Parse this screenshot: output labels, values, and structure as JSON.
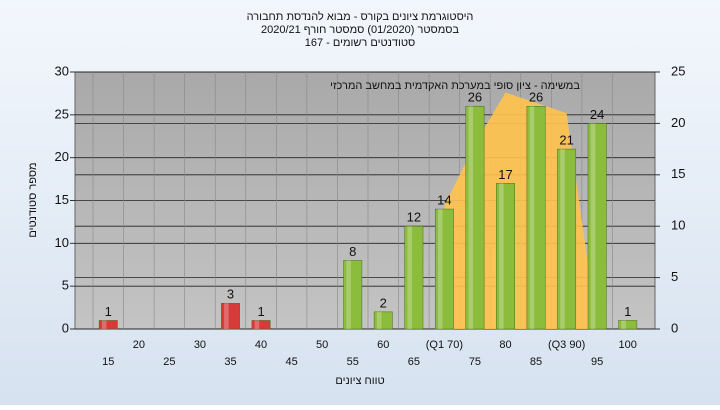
{
  "chart_data": {
    "type": "bar",
    "title": [
      "היסטוגרמת ציונים בקורס - מבוא להנדסת תחבורה",
      "בסמסטר (01/2020) סמסטר חורף 2020/21",
      "סטודנטים רשומים - 167"
    ],
    "annotation": "במשימה - ציון סופי במערכת האקדמית במחשב המרכזי",
    "y_label": "מספר סטודנטים",
    "x_label": "טווח ציונים",
    "categories": [
      "15",
      "20",
      "25",
      "30",
      "35",
      "40",
      "45",
      "50",
      "55",
      "60",
      "65",
      "(Q1 70)",
      "75",
      "80",
      "85",
      "(Q3 90)",
      "95",
      "100"
    ],
    "series": [
      {
        "values": [
          1,
          0,
          0,
          0,
          3,
          1,
          0,
          0,
          8,
          2,
          12,
          14,
          26,
          17,
          26,
          21,
          24,
          1
        ],
        "colors": [
          "#d83a3a",
          "#8cbc3c",
          "#8cbc3c",
          "#8cbc3c",
          "#d83a3a",
          "#d83a3a",
          "#8cbc3c",
          "#8cbc3c",
          "#8cbc3c",
          "#8cbc3c",
          "#8cbc3c",
          "#8cbc3c",
          "#8cbc3c",
          "#8cbc3c",
          "#8cbc3c",
          "#8cbc3c",
          "#8cbc3c",
          "#8cbc3c"
        ]
      },
      {
        "type": "area",
        "axis": "y2",
        "color": "#ffc34d",
        "values": [
          null,
          null,
          null,
          null,
          null,
          null,
          null,
          null,
          null,
          null,
          null,
          12,
          18,
          23,
          22,
          21,
          0,
          null
        ]
      }
    ],
    "ylim": [
      0,
      30
    ],
    "yticks": [
      0,
      5,
      10,
      15,
      20,
      25,
      30
    ],
    "y2lim": [
      0,
      25
    ],
    "y2ticks": [
      0,
      5,
      10,
      15,
      20,
      25
    ],
    "grid": true
  }
}
